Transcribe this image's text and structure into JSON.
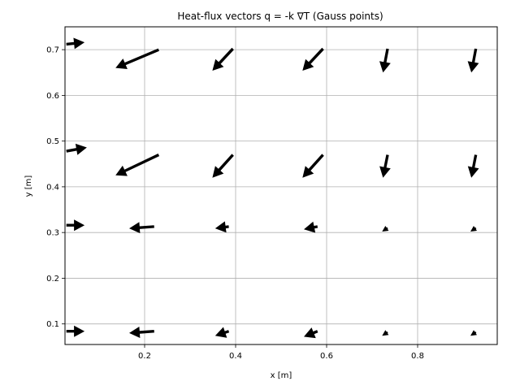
{
  "chart_data": {
    "type": "quiver",
    "title": "Heat-flux vectors q = -k ∇T (Gauss points)",
    "xlabel": "x [m]",
    "ylabel": "y [m]",
    "xlim": [
      0.025,
      0.975
    ],
    "ylim": [
      0.055,
      0.75
    ],
    "xticks": [
      0.2,
      0.4,
      0.6,
      0.8
    ],
    "xtick_labels": [
      "0.2",
      "0.4",
      "0.6",
      "0.8"
    ],
    "yticks": [
      0.1,
      0.2,
      0.3,
      0.4,
      0.5,
      0.6,
      0.7
    ],
    "ytick_labels": [
      "0.1",
      "0.2",
      "0.3",
      "0.4",
      "0.5",
      "0.6",
      "0.7"
    ],
    "grid": true,
    "arrow_color": "#000000",
    "vectors": [
      {
        "x": 0.028,
        "y": 0.712,
        "u": 0.04,
        "v": 0.004
      },
      {
        "x": 0.231,
        "y": 0.7,
        "u": -0.095,
        "v": -0.04
      },
      {
        "x": 0.394,
        "y": 0.702,
        "u": -0.045,
        "v": -0.048
      },
      {
        "x": 0.592,
        "y": 0.702,
        "u": -0.045,
        "v": -0.048
      },
      {
        "x": 0.734,
        "y": 0.702,
        "u": -0.01,
        "v": -0.052
      },
      {
        "x": 0.928,
        "y": 0.702,
        "u": -0.01,
        "v": -0.052
      },
      {
        "x": 0.028,
        "y": 0.478,
        "u": 0.045,
        "v": 0.008
      },
      {
        "x": 0.231,
        "y": 0.47,
        "u": -0.095,
        "v": -0.045
      },
      {
        "x": 0.394,
        "y": 0.47,
        "u": -0.045,
        "v": -0.05
      },
      {
        "x": 0.592,
        "y": 0.47,
        "u": -0.045,
        "v": -0.05
      },
      {
        "x": 0.734,
        "y": 0.47,
        "u": -0.01,
        "v": -0.05
      },
      {
        "x": 0.928,
        "y": 0.47,
        "u": -0.01,
        "v": -0.05
      },
      {
        "x": 0.028,
        "y": 0.316,
        "u": 0.04,
        "v": 0.0
      },
      {
        "x": 0.221,
        "y": 0.313,
        "u": -0.055,
        "v": -0.004
      },
      {
        "x": 0.385,
        "y": 0.313,
        "u": -0.03,
        "v": -0.004
      },
      {
        "x": 0.58,
        "y": 0.313,
        "u": -0.03,
        "v": -0.006
      },
      {
        "x": 0.734,
        "y": 0.31,
        "u": -0.012,
        "v": -0.008
      },
      {
        "x": 0.928,
        "y": 0.31,
        "u": -0.012,
        "v": -0.008
      },
      {
        "x": 0.028,
        "y": 0.084,
        "u": 0.04,
        "v": 0.0
      },
      {
        "x": 0.221,
        "y": 0.084,
        "u": -0.055,
        "v": -0.004
      },
      {
        "x": 0.385,
        "y": 0.084,
        "u": -0.03,
        "v": -0.01
      },
      {
        "x": 0.58,
        "y": 0.084,
        "u": -0.03,
        "v": -0.012
      },
      {
        "x": 0.734,
        "y": 0.082,
        "u": -0.012,
        "v": -0.008
      },
      {
        "x": 0.928,
        "y": 0.082,
        "u": -0.012,
        "v": -0.008
      }
    ]
  }
}
